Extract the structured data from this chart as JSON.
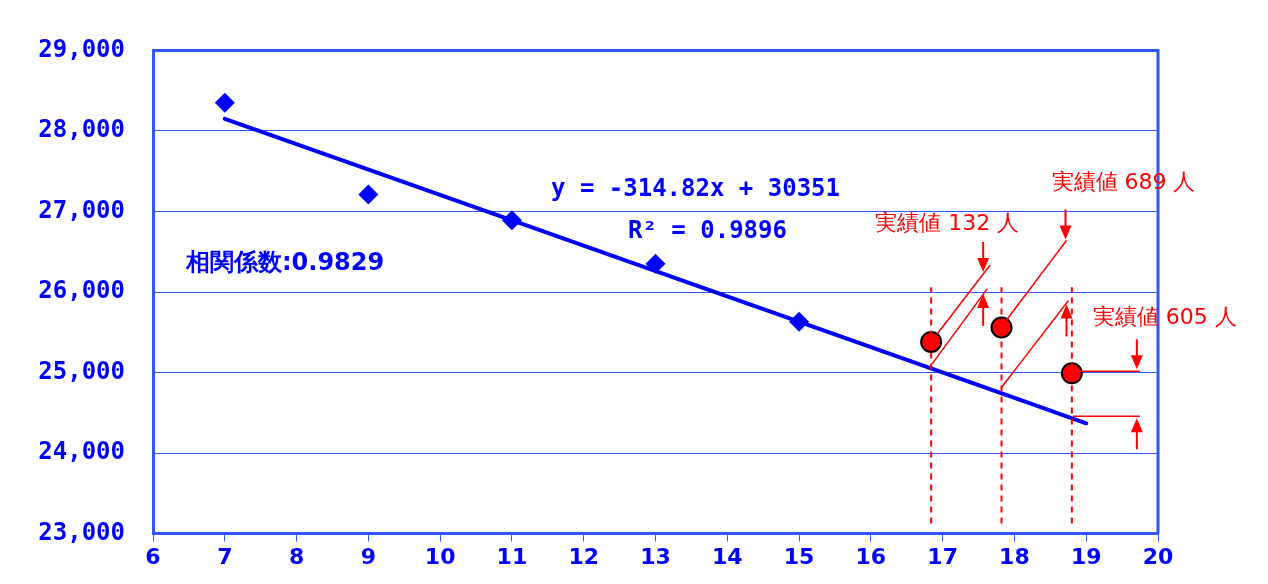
{
  "chart_data": {
    "type": "scatter",
    "xlim": [
      6,
      20
    ],
    "xticks": [
      6,
      7,
      8,
      9,
      10,
      11,
      12,
      13,
      14,
      15,
      16,
      17,
      18,
      19,
      20
    ],
    "ylim": [
      23000,
      29000
    ],
    "yticks": [
      {
        "value": 23000,
        "label": "23,000"
      },
      {
        "value": 24000,
        "label": "24,000"
      },
      {
        "value": 25000,
        "label": "25,000"
      },
      {
        "value": 26000,
        "label": "26,000"
      },
      {
        "value": 27000,
        "label": "27,000"
      },
      {
        "value": 28000,
        "label": "28,000"
      },
      {
        "value": 29000,
        "label": "29,000"
      }
    ],
    "grid": "y",
    "series": [
      {
        "type": "scatter",
        "marker": "diamond",
        "color": "#0000ff",
        "x": [
          7,
          9,
          11,
          13,
          15
        ],
        "values": [
          28350,
          27210,
          26890,
          26350,
          25630
        ]
      },
      {
        "type": "line",
        "marker": "none",
        "color": "#0000ff",
        "x": [
          7,
          19
        ],
        "values": [
          28150,
          24370
        ]
      },
      {
        "type": "scatter",
        "marker": "circle",
        "color": "#ff0000",
        "x": [
          16.84,
          17.82,
          18.8
        ],
        "values": [
          25380,
          25560,
          24990
        ]
      }
    ],
    "ref_lines": [
      {
        "axis": "x",
        "value": 16.84,
        "color": "#ff0000",
        "line_style": "dashed"
      },
      {
        "axis": "x",
        "value": 17.82,
        "color": "#ff0000",
        "line_style": "dashed"
      },
      {
        "axis": "x",
        "value": 18.8,
        "color": "#ff0000",
        "line_style": "dashed"
      }
    ],
    "annotations": [
      "y = -314.82x + 30351",
      "R² = 0.9896",
      "相関係数:0.9829",
      "実績値 132 人",
      "実績値 689 人",
      {
        "text": "実績値 605 人",
        "x": 18.8,
        "y": 24990
      }
    ]
  }
}
